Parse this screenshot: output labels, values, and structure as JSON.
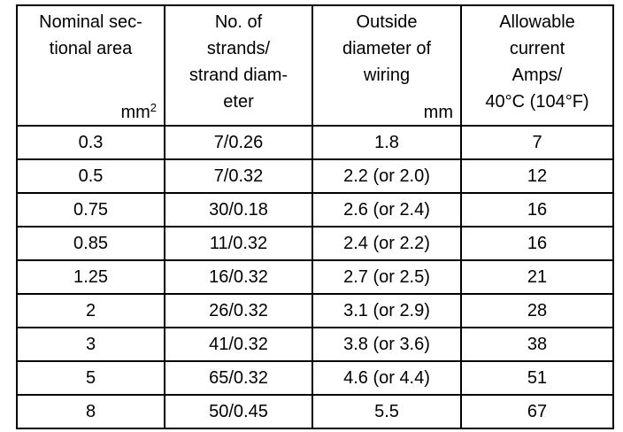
{
  "table": {
    "header": [
      {
        "lines": [
          "Nominal sec-",
          "tional area"
        ],
        "unit": "mm",
        "unit_sup": "2"
      },
      {
        "lines": [
          "No. of",
          "strands/",
          "strand diam-",
          "eter"
        ]
      },
      {
        "lines": [
          "Outside",
          "diameter of",
          "wiring"
        ],
        "unit": "mm"
      },
      {
        "lines": [
          "Allowable",
          "current",
          "Amps/",
          "40°C (104°F)"
        ]
      }
    ],
    "rows": [
      [
        "0.3",
        "7/0.26",
        "1.8",
        "7"
      ],
      [
        "0.5",
        "7/0.32",
        "2.2 (or 2.0)",
        "12"
      ],
      [
        "0.75",
        "30/0.18",
        "2.6 (or 2.4)",
        "16"
      ],
      [
        "0.85",
        "11/0.32",
        "2.4 (or 2.2)",
        "16"
      ],
      [
        "1.25",
        "16/0.32",
        "2.7 (or 2.5)",
        "21"
      ],
      [
        "2",
        "26/0.32",
        "3.1 (or 2.9)",
        "28"
      ],
      [
        "3",
        "41/0.32",
        "3.8 (or 3.6)",
        "38"
      ],
      [
        "5",
        "65/0.32",
        "4.6 (or 4.4)",
        "51"
      ],
      [
        "8",
        "50/0.45",
        "5.5",
        "67"
      ]
    ]
  }
}
